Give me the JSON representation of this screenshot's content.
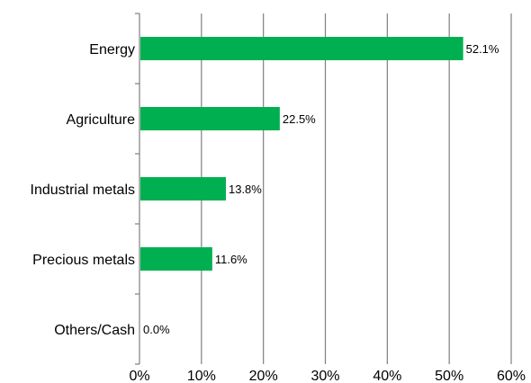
{
  "chart_data": {
    "type": "bar",
    "orientation": "horizontal",
    "categories": [
      "Energy",
      "Agriculture",
      "Industrial metals",
      "Precious metals",
      "Others/Cash"
    ],
    "values": [
      52.1,
      22.5,
      13.8,
      11.6,
      0.0
    ],
    "value_labels": [
      "52.1%",
      "22.5%",
      "13.8%",
      "11.6%",
      "0.0%"
    ],
    "x_ticks": [
      0,
      10,
      20,
      30,
      40,
      50,
      60
    ],
    "x_tick_labels": [
      "0%",
      "10%",
      "20%",
      "30%",
      "40%",
      "50%",
      "60%"
    ],
    "xlim": [
      0,
      60
    ],
    "title": "",
    "xlabel": "",
    "ylabel": "",
    "grid": "vertical",
    "legend": "none",
    "colors": {
      "bar": "#00b050",
      "grid": "#7f7f7f",
      "axis": "#7f7f7f"
    }
  }
}
